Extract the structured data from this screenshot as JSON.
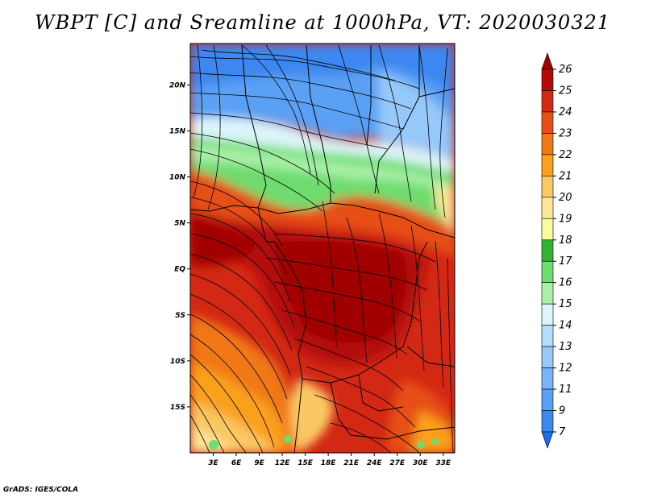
{
  "title": "WBPT [C] and Sreamline at 1000hPa, VT: 2020030321",
  "credit": "GrADS: IGES/COLA",
  "map": {
    "lat_ticks": [
      "20N",
      "15N",
      "10N",
      "5N",
      "EQ",
      "5S",
      "10S",
      "15S"
    ],
    "lon_ticks": [
      "3E",
      "6E",
      "9E",
      "12E",
      "15E",
      "18E",
      "21E",
      "24E",
      "27E",
      "30E",
      "33E"
    ],
    "lat_range": [
      -20,
      24.5
    ],
    "lon_range": [
      0,
      34.5
    ]
  },
  "colorbar": {
    "labels": [
      "7",
      "9",
      "11",
      "12",
      "13",
      "14",
      "15",
      "16",
      "17",
      "18",
      "19",
      "20",
      "21",
      "22",
      "23",
      "24",
      "25",
      "26"
    ],
    "colors": [
      "#1e6ee6",
      "#3c87f0",
      "#5aa0f5",
      "#78b4f8",
      "#96c8fa",
      "#b4dcfc",
      "#dcf5fa",
      "#aaf0aa",
      "#6edc6e",
      "#32b432",
      "#fafaa0",
      "#fae696",
      "#fac864",
      "#faa01e",
      "#f07814",
      "#e65014",
      "#d22814",
      "#b40a0a",
      "#a00000"
    ]
  }
}
